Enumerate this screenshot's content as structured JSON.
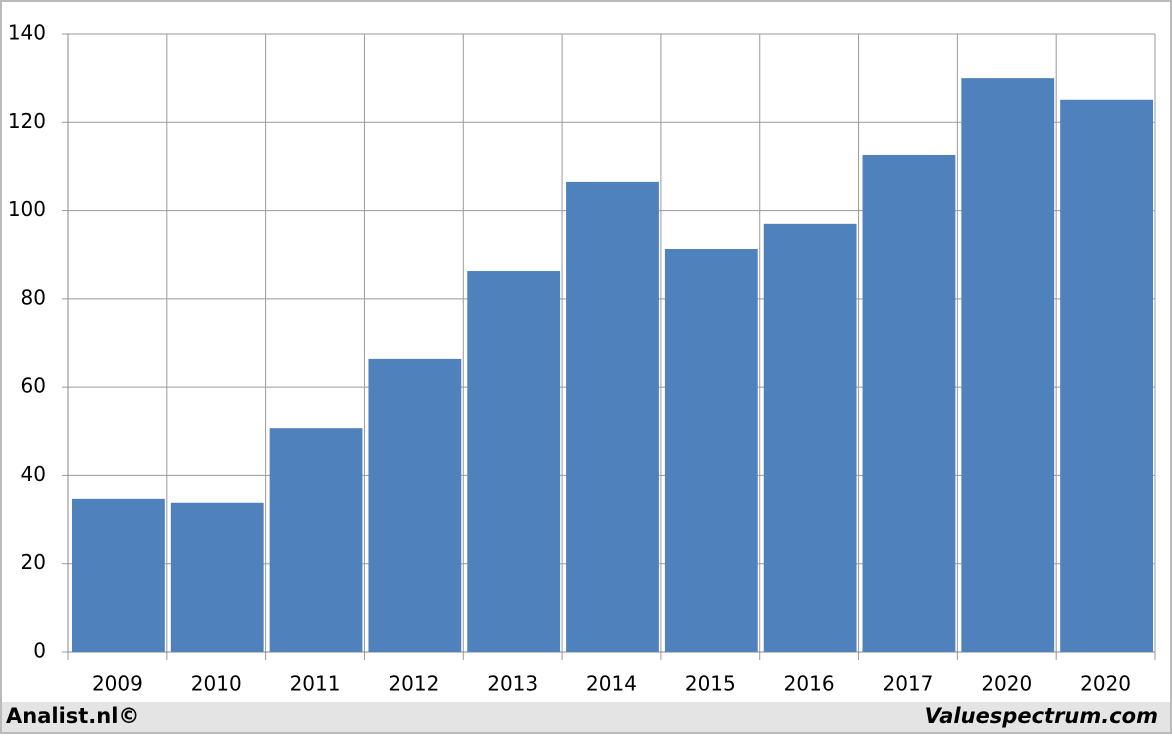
{
  "chart_data": {
    "type": "bar",
    "categories": [
      "2009",
      "2010",
      "2011",
      "2012",
      "2013",
      "2014",
      "2015",
      "2016",
      "2017",
      "2020",
      "2020"
    ],
    "values": [
      34.7,
      33.8,
      50.7,
      66.4,
      86.3,
      106.5,
      91.3,
      97.0,
      112.6,
      130.0,
      125.1
    ],
    "color": "#4f81bd",
    "ylim": [
      0,
      140
    ],
    "yticks": [
      0,
      20,
      40,
      60,
      80,
      100,
      120,
      140
    ],
    "grid": true,
    "footer_left": "Analist.nl©",
    "footer_right": "Valuespectrum.com"
  }
}
